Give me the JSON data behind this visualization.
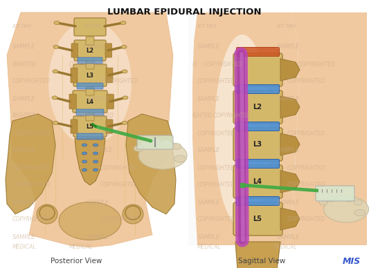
{
  "title": "LUMBAR EPIDURAL INJECTION",
  "title_fontsize": 9.5,
  "title_fontweight": "bold",
  "label_left": "Posterior View",
  "label_right": "Sagittal View",
  "label_mis": "MIS",
  "bg_color": "#ffffff",
  "fig_width": 5.33,
  "fig_height": 3.88,
  "dpi": 100,
  "skin_color": "#f0c9a0",
  "skin_edge": "#e8b888",
  "bone_color": "#d4b86a",
  "bone_dark": "#b89040",
  "bone_edge": "#9a7830",
  "disc_color": "#4a8fd4",
  "disc_edge": "#2255aa",
  "canal_color": "#bb44bb",
  "canal_dark": "#993399",
  "needle_color": "#44aa44",
  "needle_tip": "#228822",
  "syringe_color": "#d0ddc8",
  "glove_color": "#ddd5b8",
  "glove_edge": "#bbb090",
  "wm_color": "#c8a888",
  "wm_alpha": 0.55,
  "mis_color": "#3355cc",
  "label_color": "#444444",
  "vertebra_labels": [
    "L2",
    "L3",
    "L4",
    "L5"
  ],
  "sacrum_color": "#c8a050"
}
